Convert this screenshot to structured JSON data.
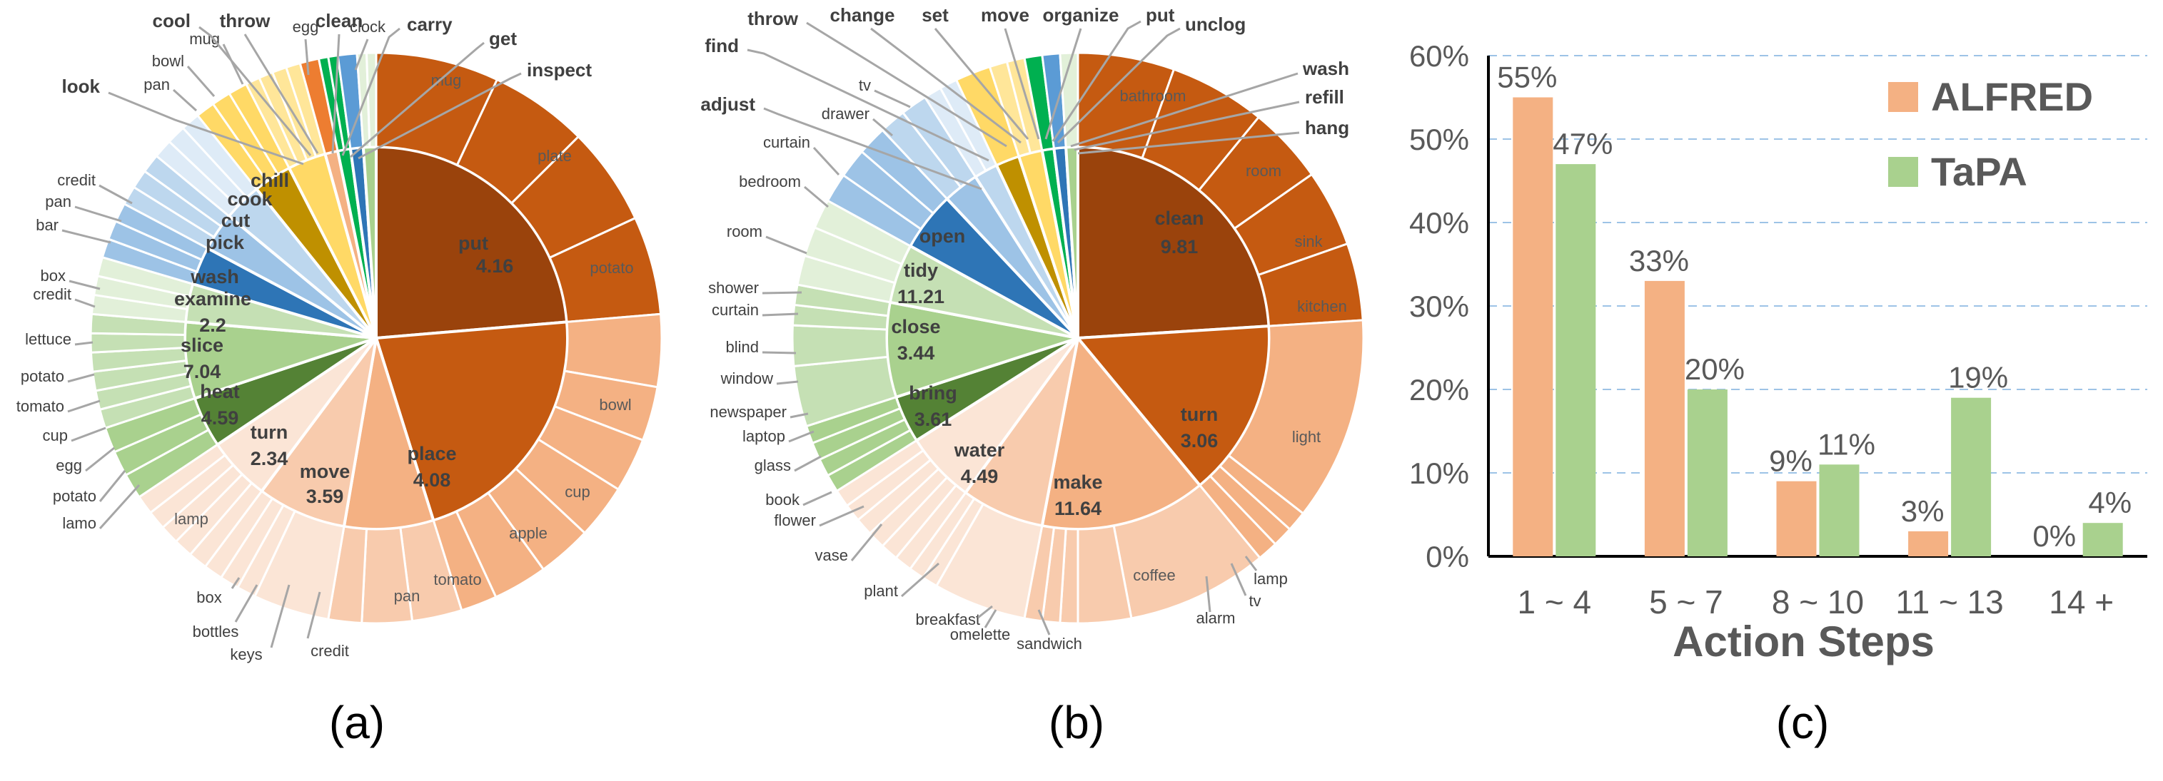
{
  "colors": {
    "outer_brown": "#c55a11",
    "dark_brown": "#9a430c",
    "light_orange": "#f4b183",
    "pale_orange": "#f8cbad",
    "very_pale": "#fbe5d6",
    "green_dark": "#548235",
    "green_mid": "#a9d18e",
    "green_light": "#c5e0b4",
    "green_pale": "#e2f0d9",
    "blue_dark": "#2e75b6",
    "blue_mid": "#9dc3e6",
    "blue_light": "#bdd7ee",
    "blue_pale": "#deebf7",
    "gold": "#bf9000",
    "yellow": "#ffd966",
    "yellow_light": "#ffe699",
    "bar_alfred": "#f4b183",
    "bar_tapa": "#a9d18e",
    "alfred_label": "#c55a11",
    "tapa_label": "#548235",
    "grid": "#9dc3e6"
  },
  "panel_labels": [
    "(a)",
    "(b)",
    "(c)"
  ],
  "chart_data": [
    {
      "type": "pie",
      "panel": "(a)",
      "title": "",
      "inner_ring": [
        {
          "name": "put",
          "value": "4.16",
          "weight": 22,
          "color": "#9a430c"
        },
        {
          "name": "place",
          "value": "4.08",
          "weight": 20,
          "color": "#c55a11"
        },
        {
          "name": "move",
          "value": "3.59",
          "weight": 7,
          "color": "#f4b183"
        },
        {
          "name": "turn",
          "value": "2.34",
          "weight": 7,
          "color": "#f8cbad"
        },
        {
          "name": "heat",
          "value": "4.59",
          "weight": 5,
          "color": "#fbe5d6"
        },
        {
          "name": "slice",
          "value": "7.04",
          "weight": 4,
          "color": "#548235"
        },
        {
          "name": "examine",
          "value": "2.2",
          "weight": 6,
          "color": "#a9d18e"
        },
        {
          "name": "wash",
          "value": "",
          "weight": 3,
          "color": "#c5e0b4"
        },
        {
          "name": "pick",
          "value": "",
          "weight": 3,
          "color": "#2e75b6"
        },
        {
          "name": "cut",
          "value": "",
          "weight": 3,
          "color": "#9dc3e6"
        },
        {
          "name": "cook",
          "value": "",
          "weight": 3,
          "color": "#bdd7ee"
        },
        {
          "name": "chill",
          "value": "",
          "weight": 3,
          "color": "#bf9000"
        },
        {
          "name": "",
          "value": "",
          "weight": 3,
          "color": "#ffd966"
        },
        {
          "name": "",
          "value": "",
          "weight": 1,
          "color": "#f4b183"
        },
        {
          "name": "",
          "value": "",
          "weight": 1,
          "color": "#00b050"
        },
        {
          "name": "",
          "value": "",
          "weight": 1,
          "color": "#2e75b6"
        },
        {
          "name": "",
          "value": "",
          "weight": 1,
          "color": "#a9d18e"
        }
      ],
      "outer_labels": [
        {
          "name": "mug",
          "anchor": "inside"
        },
        {
          "name": "plate",
          "anchor": "inside"
        },
        {
          "name": "potato",
          "anchor": "inside"
        },
        {
          "name": "bowl",
          "anchor": "inside"
        },
        {
          "name": "cup",
          "anchor": "inside"
        },
        {
          "name": "apple",
          "anchor": "inside"
        },
        {
          "name": "tomato",
          "anchor": "inside"
        },
        {
          "name": "pan",
          "anchor": "inside"
        },
        {
          "name": "lamp",
          "anchor": "inside"
        },
        {
          "name": "credit",
          "anchor": "outside"
        },
        {
          "name": "keys",
          "anchor": "outside"
        },
        {
          "name": "bottles",
          "anchor": "outside"
        },
        {
          "name": "box",
          "anchor": "outside"
        },
        {
          "name": "lamo",
          "anchor": "outside"
        },
        {
          "name": "potato",
          "anchor": "outside"
        },
        {
          "name": "egg",
          "anchor": "outside"
        },
        {
          "name": "cup",
          "anchor": "outside"
        },
        {
          "name": "tomato",
          "anchor": "outside"
        },
        {
          "name": "potato",
          "anchor": "outside"
        },
        {
          "name": "lettuce",
          "anchor": "outside"
        },
        {
          "name": "credit",
          "anchor": "outside"
        },
        {
          "name": "box",
          "anchor": "outside"
        },
        {
          "name": "bar",
          "anchor": "outside"
        },
        {
          "name": "pan",
          "anchor": "outside"
        },
        {
          "name": "credit",
          "anchor": "outside"
        },
        {
          "name": "pan",
          "anchor": "outside"
        },
        {
          "name": "bowl",
          "anchor": "outside"
        },
        {
          "name": "mug",
          "anchor": "outside"
        },
        {
          "name": "egg",
          "anchor": "outside"
        },
        {
          "name": "clock",
          "anchor": "outside"
        }
      ],
      "leader_labels": [
        "look",
        "cool",
        "throw",
        "clean",
        "carry",
        "get",
        "inspect"
      ]
    },
    {
      "type": "pie",
      "panel": "(b)",
      "title": "",
      "inner_ring": [
        {
          "name": "clean",
          "value": "9.81",
          "weight": 24,
          "color": "#9a430c"
        },
        {
          "name": "turn",
          "value": "3.06",
          "weight": 15,
          "color": "#c55a11"
        },
        {
          "name": "make",
          "value": "11.64",
          "weight": 14,
          "color": "#f4b183"
        },
        {
          "name": "water",
          "value": "4.49",
          "weight": 7,
          "color": "#f8cbad"
        },
        {
          "name": "bring",
          "value": "3.61",
          "weight": 6,
          "color": "#fbe5d6"
        },
        {
          "name": "close",
          "value": "3.44",
          "weight": 4,
          "color": "#548235"
        },
        {
          "name": "tidy",
          "value": "11.21",
          "weight": 8,
          "color": "#a9d18e"
        },
        {
          "name": "open",
          "value": "",
          "weight": 5,
          "color": "#c5e0b4"
        },
        {
          "name": "",
          "value": "",
          "weight": 5,
          "color": "#2e75b6"
        },
        {
          "name": "",
          "value": "",
          "weight": 3,
          "color": "#9dc3e6"
        },
        {
          "name": "",
          "value": "",
          "weight": 2,
          "color": "#bdd7ee"
        },
        {
          "name": "",
          "value": "",
          "weight": 2,
          "color": "#bf9000"
        },
        {
          "name": "",
          "value": "",
          "weight": 2,
          "color": "#ffd966"
        },
        {
          "name": "",
          "value": "",
          "weight": 1,
          "color": "#00b050"
        },
        {
          "name": "",
          "value": "",
          "weight": 1,
          "color": "#2e75b6"
        },
        {
          "name": "",
          "value": "",
          "weight": 1,
          "color": "#a9d18e"
        }
      ],
      "outer_labels": [
        {
          "name": "bathroom",
          "anchor": "inside"
        },
        {
          "name": "room",
          "anchor": "inside"
        },
        {
          "name": "sink",
          "anchor": "inside"
        },
        {
          "name": "kitchen",
          "anchor": "inside"
        },
        {
          "name": "light",
          "anchor": "inside"
        },
        {
          "name": "coffee",
          "anchor": "inside"
        },
        {
          "name": "lamp",
          "anchor": "outside"
        },
        {
          "name": "tv",
          "anchor": "outside"
        },
        {
          "name": "alarm",
          "anchor": "outside"
        },
        {
          "name": "sandwich",
          "anchor": "outside"
        },
        {
          "name": "omelette",
          "anchor": "outside"
        },
        {
          "name": "breakfast",
          "anchor": "outside"
        },
        {
          "name": "plant",
          "anchor": "outside"
        },
        {
          "name": "vase",
          "anchor": "outside"
        },
        {
          "name": "flower",
          "anchor": "outside"
        },
        {
          "name": "book",
          "anchor": "outside"
        },
        {
          "name": "glass",
          "anchor": "outside"
        },
        {
          "name": "laptop",
          "anchor": "outside"
        },
        {
          "name": "newspaper",
          "anchor": "outside"
        },
        {
          "name": "window",
          "anchor": "outside"
        },
        {
          "name": "blind",
          "anchor": "outside"
        },
        {
          "name": "curtain",
          "anchor": "outside"
        },
        {
          "name": "shower",
          "anchor": "outside"
        },
        {
          "name": "room",
          "anchor": "outside"
        },
        {
          "name": "bedroom",
          "anchor": "outside"
        },
        {
          "name": "curtain",
          "anchor": "outside"
        },
        {
          "name": "drawer",
          "anchor": "outside"
        },
        {
          "name": "tv",
          "anchor": "outside"
        }
      ],
      "leader_labels": [
        "adjust",
        "find",
        "throw",
        "change",
        "set",
        "move",
        "organize",
        "put",
        "unclog",
        "wash",
        "refill",
        "hang"
      ]
    },
    {
      "type": "bar",
      "panel": "(c)",
      "title": "",
      "xlabel": "Action Steps",
      "ylabel": "",
      "categories": [
        "1 ~ 4",
        "5 ~ 7",
        "8 ~ 10",
        "11 ~ 13",
        "14 +"
      ],
      "series": [
        {
          "name": "ALFRED",
          "values": [
            55,
            33,
            9,
            3,
            0
          ],
          "labels": [
            "55%",
            "33%",
            "9%",
            "3%",
            "0%"
          ],
          "color": "#f4b183",
          "label_color": "#c55a11"
        },
        {
          "name": "TaPA",
          "values": [
            47,
            20,
            11,
            19,
            4
          ],
          "labels": [
            "47%",
            "20%",
            "11%",
            "19%",
            "4%"
          ],
          "color": "#a9d18e",
          "label_color": "#548235"
        }
      ],
      "ylim": [
        0,
        60
      ],
      "yticks": [
        "0%",
        "10%",
        "20%",
        "30%",
        "40%",
        "50%",
        "60%"
      ],
      "grid": true,
      "legend": "top-right"
    }
  ]
}
